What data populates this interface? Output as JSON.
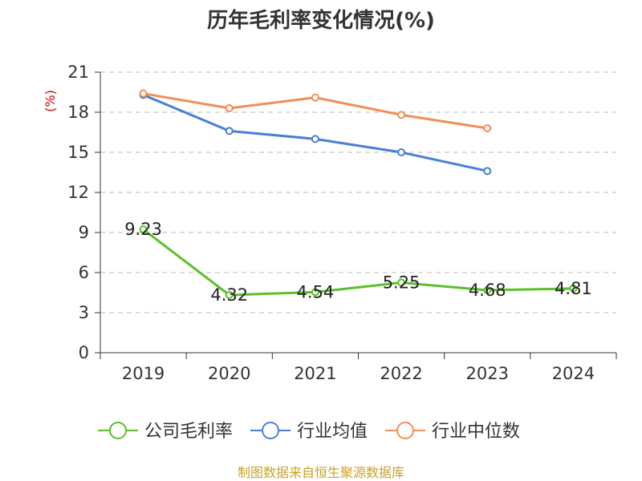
{
  "chart_data": {
    "type": "line",
    "title": "历年毛利率变化情况(%)",
    "ylabel": "(%)",
    "xlabel": "",
    "categories": [
      "2019",
      "2020",
      "2021",
      "2022",
      "2023",
      "2024"
    ],
    "ylim": [
      0,
      21
    ],
    "yticks": [
      0,
      3,
      6,
      9,
      12,
      15,
      18,
      21
    ],
    "grid": true,
    "legend_position": "bottom",
    "series": [
      {
        "name": "公司毛利率",
        "color": "#5cbf2a",
        "values": [
          9.23,
          4.32,
          4.54,
          5.25,
          4.68,
          4.81
        ],
        "labels": [
          "9.23",
          "4.32",
          "4.54",
          "5.25",
          "4.68",
          "4.81"
        ],
        "show_labels": true
      },
      {
        "name": "行业均值",
        "color": "#4a7fd6",
        "values": [
          19.3,
          16.6,
          16.0,
          15.0,
          13.6,
          null
        ],
        "show_labels": false
      },
      {
        "name": "行业中位数",
        "color": "#f28e55",
        "values": [
          19.4,
          18.3,
          19.1,
          17.8,
          16.8,
          null
        ],
        "show_labels": false
      }
    ],
    "source": "制图数据来自恒生聚源数据库"
  }
}
